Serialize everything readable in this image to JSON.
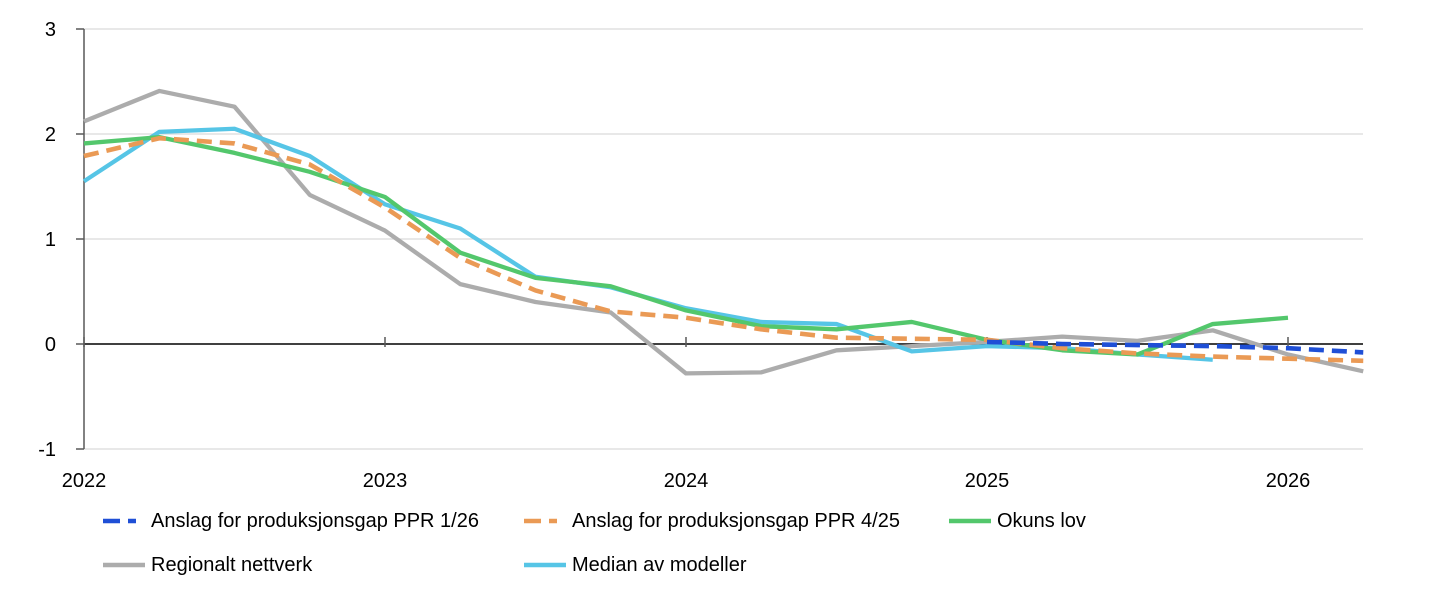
{
  "chart_data": {
    "type": "line",
    "title": "",
    "xlabel": "",
    "ylabel": "",
    "x": [
      "2022Q1",
      "2022Q2",
      "2022Q3",
      "2022Q4",
      "2023Q1",
      "2023Q2",
      "2023Q3",
      "2023Q4",
      "2024Q1",
      "2024Q2",
      "2024Q3",
      "2024Q4",
      "2025Q1",
      "2025Q2",
      "2025Q3",
      "2025Q4",
      "2026Q1",
      "2026Q2"
    ],
    "x_tick_labels": [
      "2022",
      "2023",
      "2024",
      "2025",
      "2026"
    ],
    "y_tick_labels": [
      "3",
      "2",
      "1",
      "0",
      "-1"
    ],
    "yticks": [
      3,
      2,
      1,
      0,
      -1
    ],
    "ylim": [
      -1,
      3
    ],
    "grid": "horizontal-light, zero-line-black",
    "legend_position": "bottom",
    "series": [
      {
        "name": "Anslag for produksjonsgap PPR 1/26",
        "color": "#1F4FD6",
        "style": "dashed",
        "values": [
          null,
          null,
          null,
          null,
          null,
          null,
          null,
          null,
          null,
          null,
          null,
          null,
          0.02,
          0.0,
          -0.01,
          -0.02,
          -0.04,
          -0.08
        ]
      },
      {
        "name": "Anslag for produksjonsgap PPR 4/25",
        "color": "#EA9A55",
        "style": "dashed",
        "values": [
          1.79,
          1.96,
          1.91,
          1.71,
          1.3,
          0.82,
          0.51,
          0.31,
          0.25,
          0.14,
          0.06,
          0.05,
          0.04,
          -0.04,
          -0.09,
          -0.12,
          -0.14,
          -0.16
        ]
      },
      {
        "name": "Okuns lov",
        "color": "#53C76C",
        "style": "solid",
        "values": [
          1.91,
          1.97,
          1.82,
          1.64,
          1.4,
          0.87,
          0.63,
          0.55,
          0.32,
          0.17,
          0.14,
          0.21,
          0.04,
          -0.06,
          -0.1,
          0.19,
          0.25,
          null
        ]
      },
      {
        "name": "Regionalt nettverk",
        "color": "#ACACAC",
        "style": "solid",
        "values": [
          2.12,
          2.41,
          2.26,
          1.42,
          1.08,
          0.57,
          0.4,
          0.3,
          -0.28,
          -0.27,
          -0.06,
          -0.02,
          0.02,
          0.07,
          0.03,
          0.13,
          -0.1,
          -0.26
        ]
      },
      {
        "name": "Median av modeller",
        "color": "#56C5E6",
        "style": "solid",
        "values": [
          1.55,
          2.02,
          2.05,
          1.79,
          1.33,
          1.1,
          0.64,
          0.54,
          0.34,
          0.21,
          0.19,
          -0.07,
          -0.02,
          -0.04,
          -0.1,
          -0.15,
          null,
          null
        ]
      }
    ]
  },
  "colors": {
    "background": "#FFFFFF",
    "gridline": "#D9D9D9",
    "zero_line": "#000000",
    "axis_line": "#595959",
    "tick": "#595959",
    "text": "#000000"
  }
}
